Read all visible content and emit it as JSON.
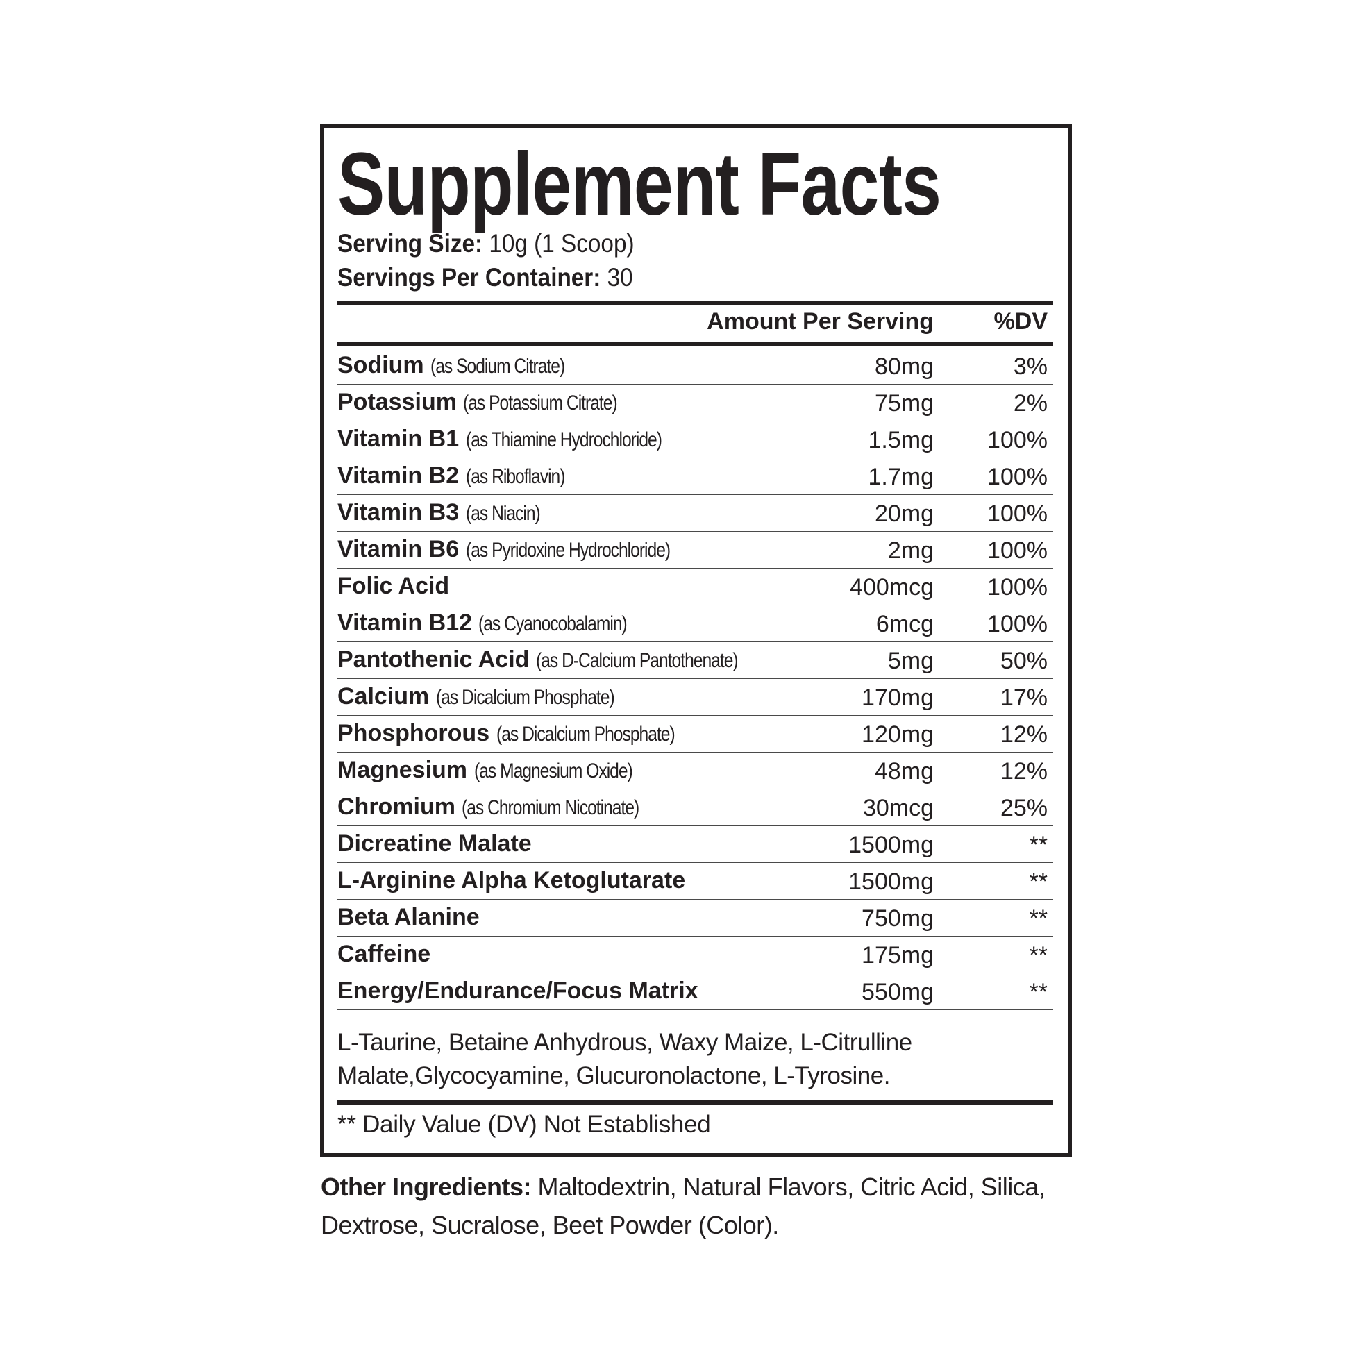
{
  "label": {
    "title": "Supplement Facts",
    "serving_size_label": "Serving Size:",
    "serving_size_value": " 10g (1 Scoop)",
    "servings_per_container_label": "Servings Per Container:",
    "servings_per_container_value": " 30",
    "header_amount": "Amount Per Serving",
    "header_dv": "%DV",
    "rows": [
      {
        "name": "Sodium",
        "source": "(as Sodium Citrate)",
        "amount": "80mg",
        "dv": "3%"
      },
      {
        "name": "Potassium",
        "source": "(as Potassium Citrate)",
        "amount": "75mg",
        "dv": "2%"
      },
      {
        "name": "Vitamin B1",
        "source": "(as Thiamine Hydrochloride)",
        "amount": "1.5mg",
        "dv": "100%"
      },
      {
        "name": "Vitamin B2",
        "source": "(as Riboflavin)",
        "amount": "1.7mg",
        "dv": "100%"
      },
      {
        "name": "Vitamin B3",
        "source": "(as Niacin)",
        "amount": "20mg",
        "dv": "100%"
      },
      {
        "name": "Vitamin B6",
        "source": "(as Pyridoxine Hydrochloride)",
        "amount": "2mg",
        "dv": "100%"
      },
      {
        "name": "Folic Acid",
        "source": "",
        "amount": "400mcg",
        "dv": "100%"
      },
      {
        "name": "Vitamin B12",
        "source": "(as Cyanocobalamin)",
        "amount": "6mcg",
        "dv": "100%"
      },
      {
        "name": "Pantothenic Acid",
        "source": "(as D-Calcium Pantothenate)",
        "amount": "5mg",
        "dv": "50%"
      },
      {
        "name": "Calcium",
        "source": "(as Dicalcium Phosphate)",
        "amount": "170mg",
        "dv": "17%"
      },
      {
        "name": "Phosphorous",
        "source": "(as Dicalcium Phosphate)",
        "amount": "120mg",
        "dv": "12%"
      },
      {
        "name": "Magnesium",
        "source": "(as Magnesium Oxide)",
        "amount": "48mg",
        "dv": "12%"
      },
      {
        "name": "Chromium",
        "source": "(as Chromium Nicotinate)",
        "amount": "30mcg",
        "dv": "25%"
      },
      {
        "name": "Dicreatine Malate",
        "source": "",
        "amount": "1500mg",
        "dv": "**"
      },
      {
        "name": "L-Arginine Alpha Ketoglutarate",
        "source": "",
        "amount": "1500mg",
        "dv": "**"
      },
      {
        "name": "Beta Alanine",
        "source": "",
        "amount": "750mg",
        "dv": "**"
      },
      {
        "name": "Caffeine",
        "source": "",
        "amount": "175mg",
        "dv": "**"
      },
      {
        "name": "Energy/Endurance/Focus Matrix",
        "source": "",
        "amount": "550mg",
        "dv": "**"
      }
    ],
    "blend_ingredients": "L-Taurine, Betaine Anhydrous, Waxy Maize,  L-Citrulline Malate,Glycocyamine, Glucuronolactone, L-Tyrosine.",
    "footnote": "** Daily Value (DV) Not Established",
    "other_ingredients_label": "Other Ingredients:",
    "other_ingredients_value": " Maltodextrin, Natural Flavors, Citric Acid, Silica, Dextrose, Sucralose, Beet Powder (Color)."
  }
}
